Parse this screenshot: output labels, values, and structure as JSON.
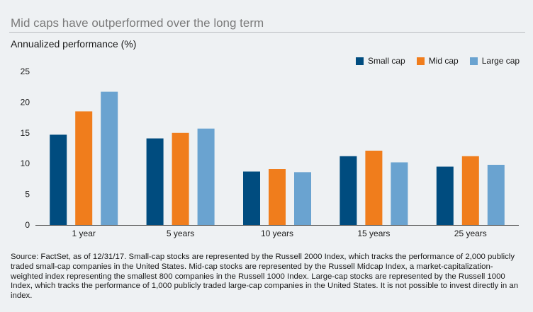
{
  "chart_data": {
    "type": "bar",
    "title": "Mid caps have outperformed over the long term",
    "ylabel": "Annualized performance (%)",
    "xlabel": "",
    "categories": [
      "1 year",
      "5 years",
      "10 years",
      "15 years",
      "25 years"
    ],
    "series": [
      {
        "name": "Small cap",
        "color": "#004c7f",
        "values": [
          14.7,
          14.1,
          8.7,
          11.2,
          9.5
        ]
      },
      {
        "name": "Mid cap",
        "color": "#f07d1c",
        "values": [
          18.5,
          15.0,
          9.1,
          12.1,
          11.2
        ]
      },
      {
        "name": "Large cap",
        "color": "#6aa3d0",
        "values": [
          21.7,
          15.7,
          8.6,
          10.2,
          9.8
        ]
      }
    ],
    "ylim": [
      0,
      25
    ],
    "yticks": [
      0,
      5,
      10,
      15,
      20,
      25
    ],
    "grid": false,
    "legend_position": "top-right"
  },
  "source_note": "Source: FactSet, as of 12/31/17. Small-cap stocks are represented by the Russell 2000 Index, which tracks the performance of 2,000 publicly traded small-cap companies in the United States. Mid-cap stocks are represented by the Russell Midcap Index, a market-capitalization-weighted index representing the smallest 800 companies in the Russell 1000 Index. Large-cap stocks are represented by the Russell 1000 Index, which tracks the performance of 1,000 publicly traded large-cap companies in the United States. It is not possible to invest directly in an index."
}
